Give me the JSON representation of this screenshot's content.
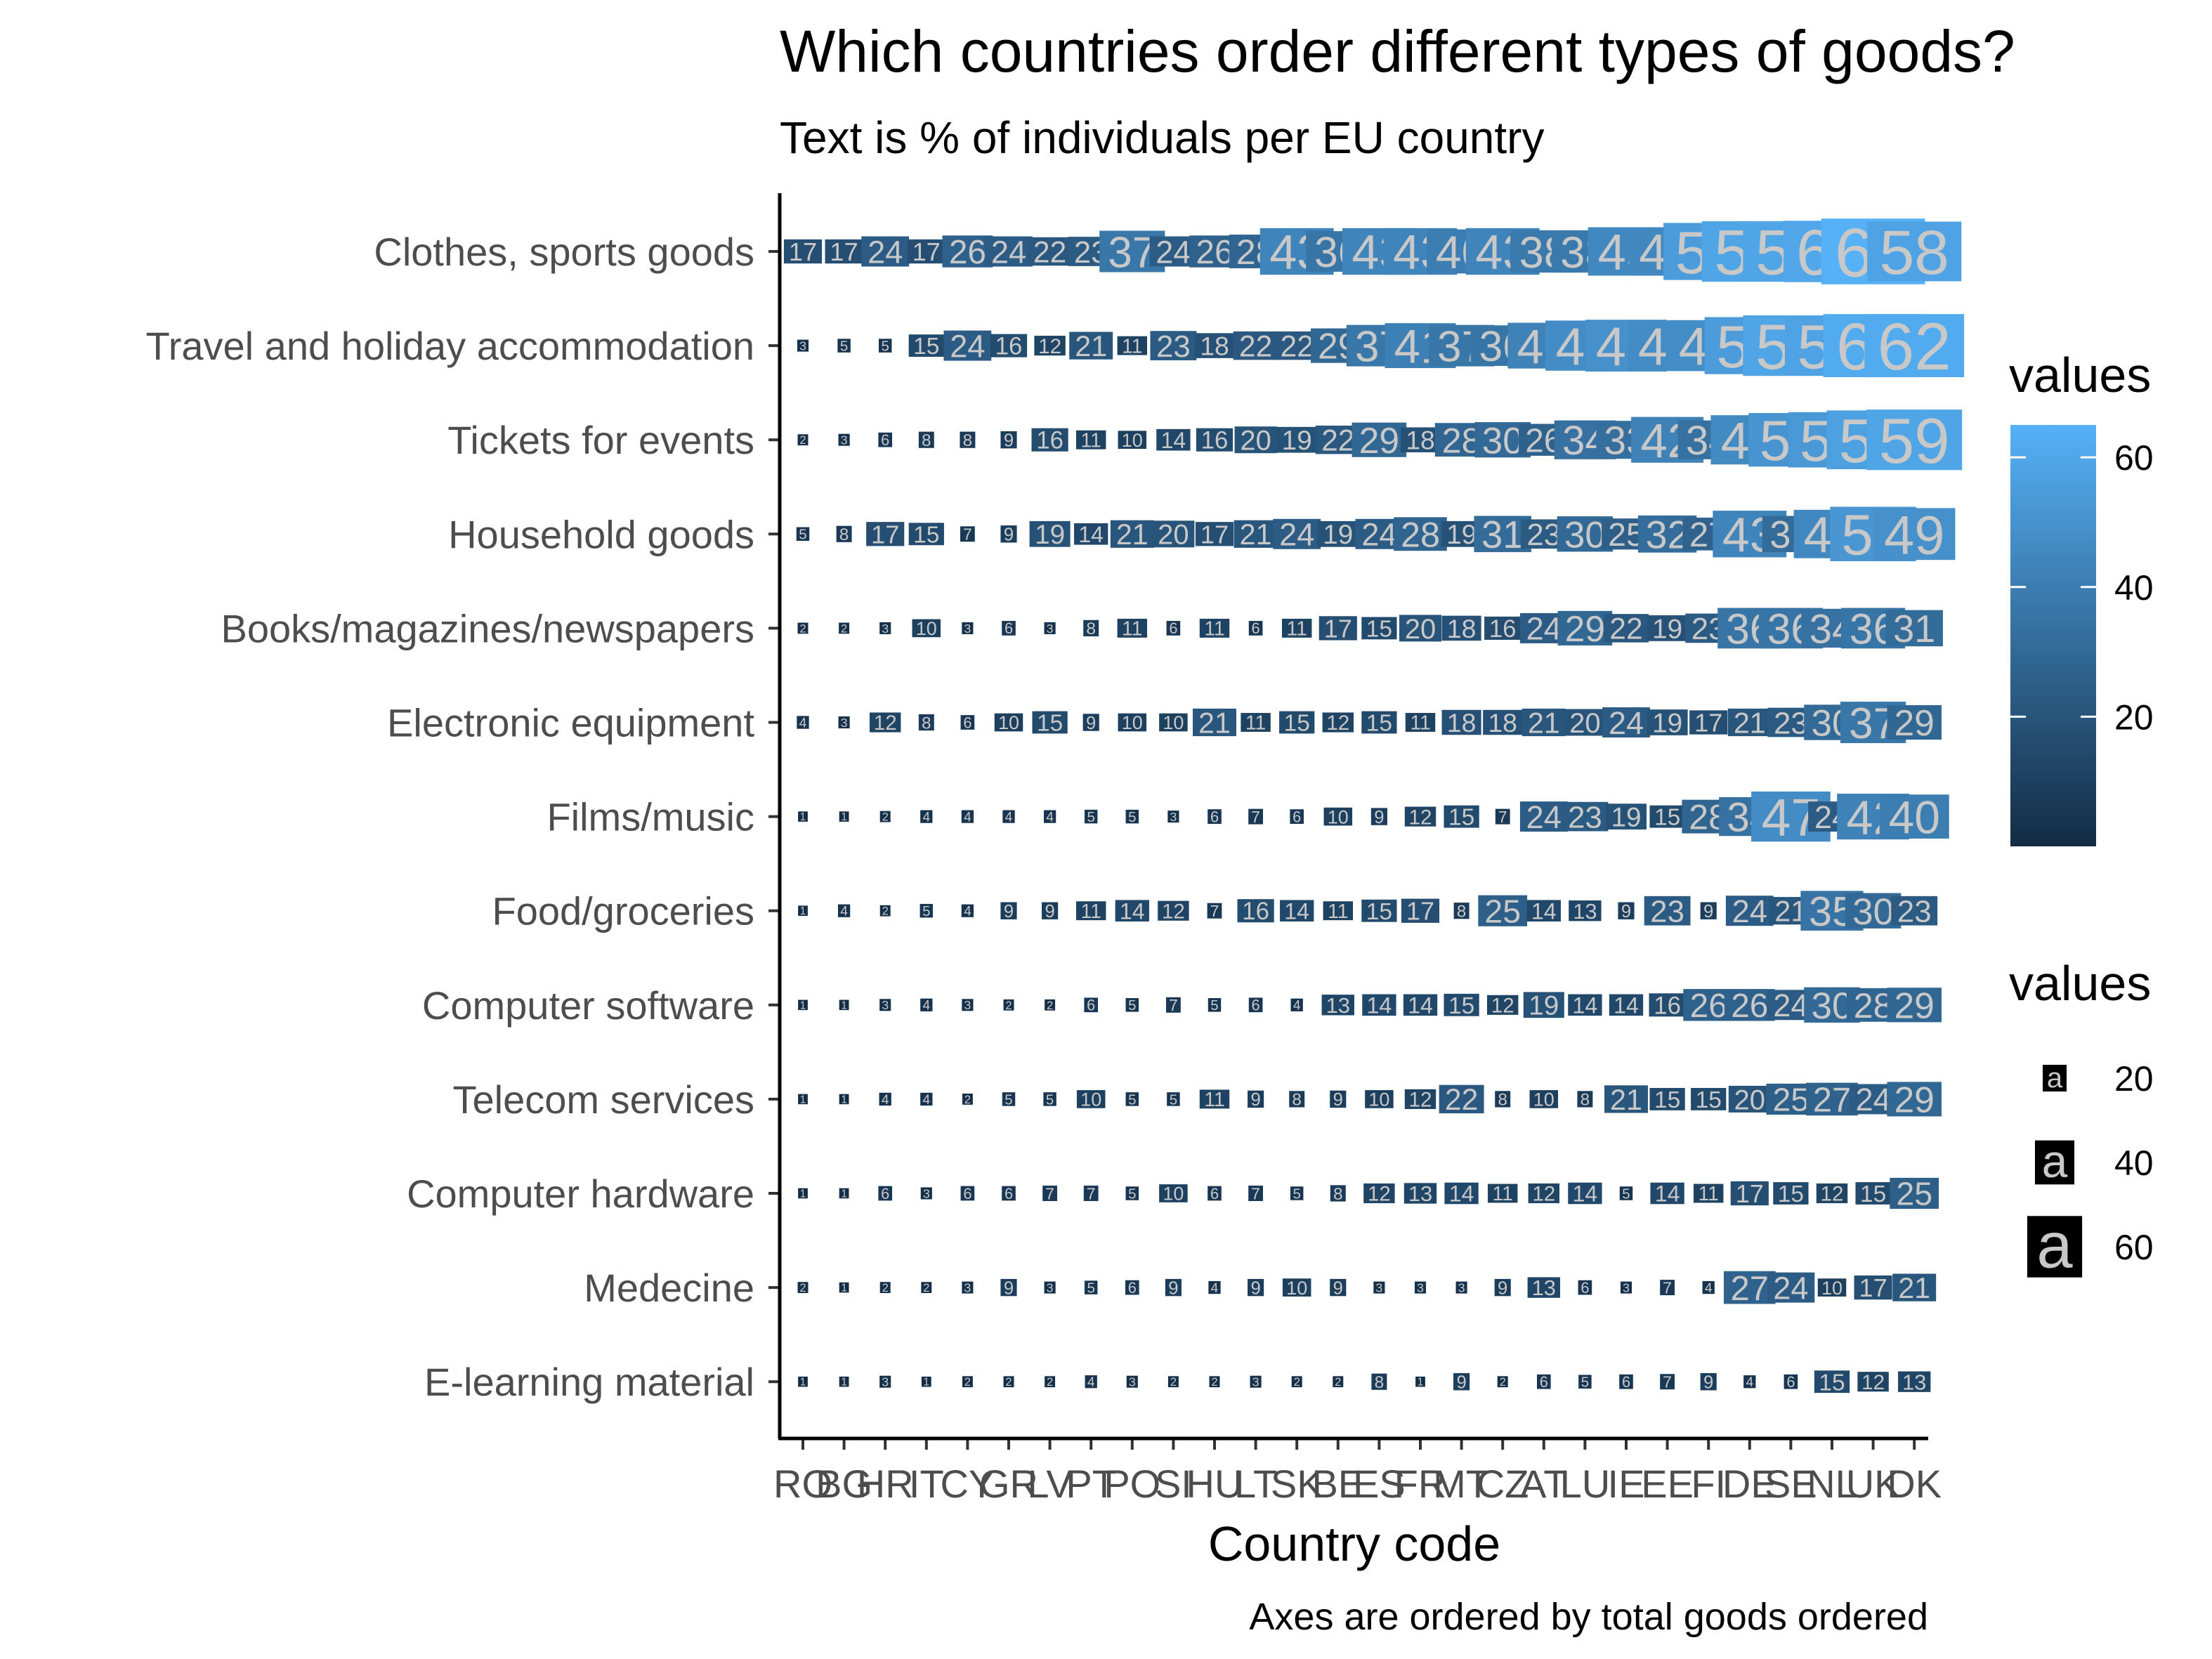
{
  "chart_data": {
    "type": "heatmap",
    "title": "Which countries order different types of goods?",
    "subtitle": "Text is % of individuals per EU country",
    "xlabel": "Country code",
    "ylabel": "",
    "caption": "Axes are ordered by total goods ordered",
    "x_categories": [
      "RO",
      "BG",
      "HR",
      "IT",
      "CY",
      "GR",
      "LV",
      "PT",
      "PO",
      "SI",
      "HU",
      "LT",
      "SK",
      "BE",
      "ES",
      "FR",
      "MT",
      "CZ",
      "AT",
      "LU",
      "IE",
      "EE",
      "FI",
      "DE",
      "SE",
      "NL",
      "UK",
      "DK"
    ],
    "y_categories": [
      "Clothes, sports goods",
      "Travel and holiday accommodation",
      "Tickets for events",
      "Household goods",
      "Books/magazines/newspapers",
      "Electronic equipment",
      "Films/music",
      "Food/groceries",
      "Computer software",
      "Telecom services",
      "Computer hardware",
      "Medecine",
      "E-learning material"
    ],
    "values": [
      [
        17,
        17,
        24,
        17,
        26,
        24,
        22,
        23,
        37,
        24,
        26,
        28,
        43,
        36,
        43,
        43,
        40,
        43,
        38,
        38,
        45,
        45,
        55,
        59,
        59,
        60,
        65,
        58
      ],
      [
        3,
        5,
        5,
        15,
        24,
        16,
        12,
        21,
        11,
        23,
        18,
        22,
        22,
        29,
        37,
        41,
        37,
        36,
        42,
        47,
        49,
        47,
        48,
        55,
        59,
        58,
        62,
        62
      ],
      [
        2,
        3,
        6,
        8,
        8,
        9,
        16,
        11,
        10,
        14,
        16,
        20,
        19,
        22,
        29,
        18,
        28,
        30,
        26,
        34,
        33,
        42,
        34,
        46,
        51,
        53,
        57,
        59
      ],
      [
        5,
        8,
        17,
        15,
        7,
        9,
        19,
        14,
        21,
        20,
        17,
        21,
        24,
        19,
        24,
        28,
        19,
        31,
        23,
        30,
        25,
        32,
        27,
        43,
        31,
        45,
        52,
        49
      ],
      [
        2,
        2,
        3,
        10,
        3,
        6,
        3,
        8,
        11,
        6,
        11,
        6,
        11,
        17,
        15,
        20,
        18,
        16,
        24,
        29,
        22,
        19,
        23,
        36,
        36,
        34,
        36,
        31
      ],
      [
        4,
        3,
        12,
        8,
        6,
        10,
        15,
        9,
        10,
        10,
        21,
        11,
        15,
        12,
        15,
        11,
        18,
        18,
        21,
        20,
        24,
        19,
        17,
        21,
        23,
        30,
        37,
        29
      ],
      [
        1,
        1,
        2,
        4,
        4,
        4,
        4,
        5,
        5,
        3,
        6,
        7,
        6,
        10,
        9,
        12,
        15,
        7,
        24,
        23,
        19,
        15,
        28,
        34,
        47,
        24,
        42,
        40
      ],
      [
        1,
        4,
        2,
        5,
        4,
        9,
        9,
        11,
        14,
        12,
        7,
        16,
        14,
        11,
        15,
        17,
        8,
        25,
        14,
        13,
        9,
        23,
        9,
        24,
        21,
        35,
        30,
        23
      ],
      [
        1,
        1,
        3,
        4,
        3,
        2,
        2,
        6,
        5,
        7,
        5,
        6,
        4,
        13,
        14,
        14,
        15,
        12,
        19,
        14,
        14,
        16,
        26,
        26,
        24,
        30,
        28,
        29
      ],
      [
        1,
        1,
        4,
        4,
        2,
        5,
        5,
        10,
        5,
        5,
        11,
        9,
        8,
        9,
        10,
        12,
        22,
        8,
        10,
        8,
        21,
        15,
        15,
        20,
        25,
        27,
        24,
        29
      ],
      [
        1,
        1,
        6,
        3,
        6,
        6,
        7,
        7,
        5,
        10,
        6,
        7,
        5,
        8,
        12,
        13,
        14,
        11,
        12,
        14,
        5,
        14,
        11,
        17,
        15,
        12,
        15,
        25
      ],
      [
        2,
        1,
        2,
        2,
        3,
        9,
        3,
        5,
        6,
        9,
        4,
        9,
        10,
        9,
        3,
        3,
        3,
        9,
        13,
        6,
        3,
        7,
        4,
        27,
        24,
        10,
        17,
        21
      ],
      [
        1,
        1,
        3,
        1,
        2,
        2,
        2,
        4,
        3,
        2,
        2,
        3,
        2,
        2,
        8,
        1,
        9,
        2,
        6,
        5,
        6,
        7,
        9,
        4,
        6,
        15,
        12,
        13
      ]
    ],
    "color_scale": {
      "low_value": 0,
      "low_color": "#132b43",
      "high_value": 65,
      "high_color": "#56b1f7",
      "text_color": "#c8c8c8"
    },
    "legend_color": {
      "title": "values",
      "ticks": [
        20,
        40,
        60
      ]
    },
    "legend_size": {
      "title": "values",
      "ticks": [
        20,
        40,
        60
      ],
      "key_glyph": "a"
    },
    "grid": false
  }
}
